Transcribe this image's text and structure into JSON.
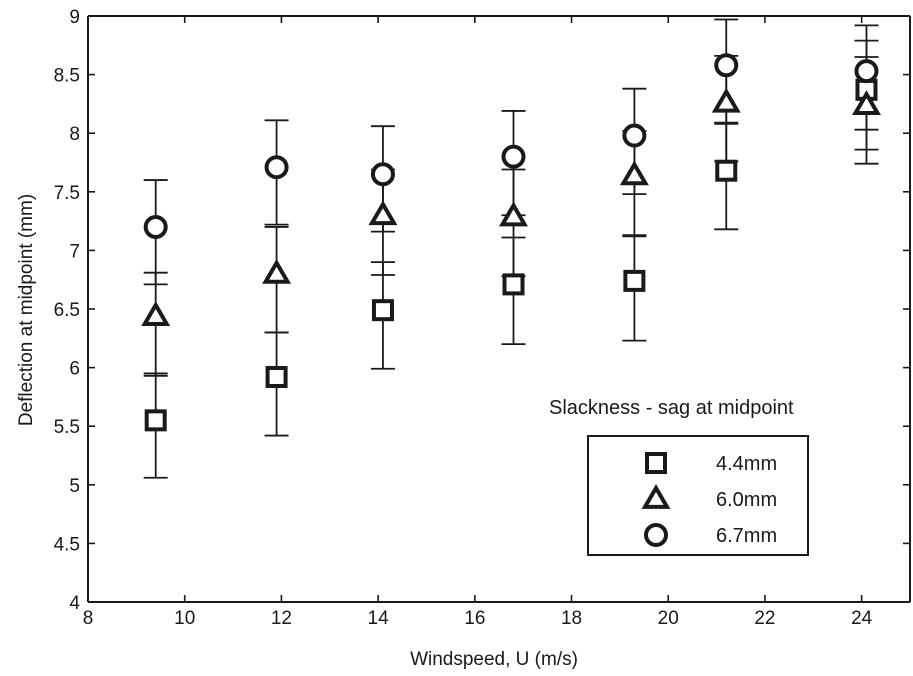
{
  "chart_data": {
    "type": "scatter",
    "xlabel": "Windspeed, U (m/s)",
    "ylabel": "Deflection at midpoint (mm)",
    "xlim": [
      8,
      25
    ],
    "ylim": [
      4,
      9
    ],
    "xticks": [
      "8",
      "10",
      "12",
      "14",
      "16",
      "18",
      "20",
      "22",
      "24"
    ],
    "yticks": [
      "4",
      "4.5",
      "5",
      "5.5",
      "6",
      "6.5",
      "7",
      "7.5",
      "8",
      "8.5",
      "9"
    ],
    "xtick_values": [
      8,
      10,
      12,
      14,
      16,
      18,
      20,
      22,
      24
    ],
    "ytick_values": [
      4,
      4.5,
      5,
      5.5,
      6,
      6.5,
      7,
      7.5,
      8,
      8.5,
      9
    ],
    "grid": false,
    "legend_title": "Slackness - sag at midpoint",
    "legend_position": "lower-right",
    "series": [
      {
        "name": "4.4mm",
        "marker": "square",
        "x": [
          9.4,
          11.9,
          14.1,
          16.8,
          19.3,
          21.2,
          24.1
        ],
        "y": [
          5.55,
          5.92,
          6.49,
          6.71,
          6.74,
          7.68,
          8.37
        ],
        "err_low": [
          5.06,
          5.42,
          5.99,
          6.2,
          6.23,
          7.18,
          7.86
        ],
        "err_high": [
          5.95,
          6.3,
          6.9,
          7.11,
          7.13,
          8.09,
          8.79
        ]
      },
      {
        "name": "6.0mm",
        "marker": "triangle",
        "x": [
          9.4,
          11.9,
          14.1,
          16.8,
          19.3,
          21.2,
          24.1
        ],
        "y": [
          6.44,
          6.8,
          7.3,
          7.29,
          7.64,
          8.26,
          8.24
        ],
        "err_low": [
          5.93,
          6.3,
          6.79,
          6.78,
          7.12,
          7.76,
          7.74
        ],
        "err_high": [
          6.81,
          7.2,
          7.69,
          7.69,
          8.02,
          8.66,
          8.65
        ]
      },
      {
        "name": "6.7mm",
        "marker": "circle",
        "x": [
          9.4,
          11.9,
          14.1,
          16.8,
          19.3,
          21.2,
          24.1
        ],
        "y": [
          7.2,
          7.71,
          7.65,
          7.8,
          7.98,
          8.58,
          8.53
        ],
        "err_low": [
          6.71,
          7.22,
          7.16,
          7.3,
          7.48,
          8.08,
          8.03
        ],
        "err_high": [
          7.6,
          8.11,
          8.06,
          8.19,
          8.38,
          8.97,
          8.92
        ]
      }
    ]
  }
}
